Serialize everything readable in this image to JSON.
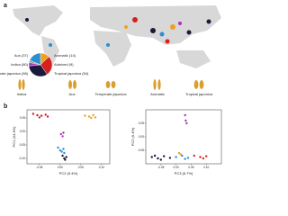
{
  "panel_labels": [
    "a",
    "b"
  ],
  "grain_labels": [
    "Indica",
    "Aus",
    "Temperate japonica",
    "Aromatic",
    "Tropical japonica"
  ],
  "chart_data": [
    {
      "type": "pie",
      "categories": [
        "Aus (37)",
        "Indica (80)",
        "Temperate japonica (96)",
        "Aromatic (14)",
        "Admixed (9)",
        "Tropical japonica (54)"
      ],
      "values": [
        37,
        80,
        96,
        14,
        9,
        54
      ],
      "colors": [
        "#f0a020",
        "#d62020",
        "#1a1a3a",
        "#b030c0",
        "#999999",
        "#2a8fd0"
      ]
    },
    {
      "type": "scatter",
      "x_label": "PC2 (9.4%)",
      "y_label": "PC1 (34.4%)",
      "xlim": [
        -0.08,
        0.12
      ],
      "ylim": [
        -0.12,
        0.08
      ],
      "xticks": [
        -0.05,
        {
          "value": 0,
          "label": "0.00"
        },
        0.05,
        {
          "value": 0.1,
          "label": "0.10"
        }
      ],
      "yticks": [
        {
          "value": -0.1,
          "label": "-0.10"
        },
        -0.05,
        {
          "value": 0,
          "label": "0.00"
        },
        0.05
      ],
      "series": [
        {
          "name": "Indica",
          "color": "#d62020",
          "x": [
            -0.065,
            -0.055,
            -0.045,
            -0.035,
            -0.03,
            -0.05
          ],
          "y": [
            0.065,
            0.06,
            0.058,
            0.062,
            0.055,
            0.052
          ]
        },
        {
          "name": "Aus",
          "color": "#f0a020",
          "x": [
            0.06,
            0.07,
            0.08,
            0.085,
            0.075
          ],
          "y": [
            0.058,
            0.055,
            0.06,
            0.052,
            0.05
          ]
        },
        {
          "name": "Aromatic",
          "color": "#b030c0",
          "x": [
            0.002,
            0.006,
            0.008
          ],
          "y": [
            -0.01,
            -0.018,
            -0.005
          ]
        },
        {
          "name": "Tropical japonica",
          "color": "#2a8fd0",
          "x": [
            -0.005,
            0.0,
            0.004,
            0.008,
            0.01
          ],
          "y": [
            -0.06,
            -0.07,
            -0.075,
            -0.065,
            -0.08
          ]
        },
        {
          "name": "Temperate japonica",
          "color": "#1a1a3a",
          "x": [
            0.006,
            0.01,
            0.012,
            0.015
          ],
          "y": [
            -0.09,
            -0.1,
            -0.105,
            -0.095
          ]
        }
      ]
    },
    {
      "type": "scatter",
      "x_label": "PC3 (6.7%)",
      "y_label": "PC2 (9.4%)",
      "xlim": [
        -0.1,
        0.15
      ],
      "ylim": [
        -0.1,
        0.1
      ],
      "xticks": [
        -0.05,
        {
          "value": 0,
          "label": "0.00"
        },
        0.05,
        {
          "value": 0.1,
          "label": "0.10"
        }
      ],
      "yticks": [
        -0.05,
        {
          "value": 0,
          "label": "0.00"
        },
        0.05
      ],
      "series": [
        {
          "name": "Temperate japonica",
          "color": "#1a1a3a",
          "x": [
            -0.08,
            -0.06,
            -0.04,
            -0.02,
            -0.07,
            -0.05
          ],
          "y": [
            -0.075,
            -0.08,
            -0.072,
            -0.078,
            -0.07,
            -0.085
          ]
        },
        {
          "name": "Tropical japonica",
          "color": "#2a8fd0",
          "x": [
            0.0,
            0.02,
            0.04,
            0.03
          ],
          "y": [
            -0.075,
            -0.07,
            -0.078,
            -0.082
          ]
        },
        {
          "name": "Aus",
          "color": "#f0a020",
          "x": [
            0.01,
            0.015
          ],
          "y": [
            -0.06,
            -0.065
          ]
        },
        {
          "name": "Aromatic",
          "color": "#b030c0",
          "x": [
            0.03,
            0.032,
            0.035
          ],
          "y": [
            0.08,
            0.06,
            0.05
          ]
        },
        {
          "name": "Indica",
          "color": "#d62020",
          "x": [
            0.06,
            0.08,
            0.1,
            0.09
          ],
          "y": [
            -0.07,
            -0.075,
            -0.072,
            -0.08
          ]
        }
      ]
    }
  ]
}
